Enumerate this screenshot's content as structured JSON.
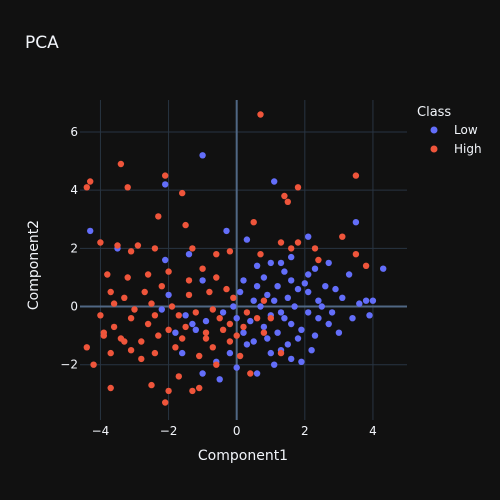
{
  "chart_data": {
    "type": "scatter",
    "title": "PCA",
    "xlabel": "Component1",
    "ylabel": "Component2",
    "xlim": [
      -4.6,
      5.0
    ],
    "ylim": [
      -3.9,
      7.1
    ],
    "xticks": [
      -4,
      -2,
      0,
      2,
      4
    ],
    "yticks": [
      -2,
      0,
      2,
      4,
      6
    ],
    "grid": true,
    "legend": {
      "title": "Class",
      "position": "top-right"
    },
    "series": [
      {
        "name": "Low",
        "color": "#636efa",
        "points": [
          [
            -1.0,
            5.2
          ],
          [
            -2.1,
            4.2
          ],
          [
            1.1,
            4.3
          ],
          [
            -3.5,
            2.0
          ],
          [
            -2.1,
            1.6
          ],
          [
            -4.3,
            2.6
          ],
          [
            -1.4,
            1.8
          ],
          [
            -0.3,
            2.6
          ],
          [
            0.3,
            2.3
          ],
          [
            1.0,
            1.5
          ],
          [
            1.3,
            1.5
          ],
          [
            1.6,
            1.7
          ],
          [
            2.1,
            2.4
          ],
          [
            3.5,
            2.9
          ],
          [
            4.3,
            1.3
          ],
          [
            3.3,
            1.1
          ],
          [
            2.7,
            1.5
          ],
          [
            2.1,
            1.1
          ],
          [
            1.4,
            1.2
          ],
          [
            0.6,
            1.4
          ],
          [
            -2.0,
            0.4
          ],
          [
            -1.0,
            0.9
          ],
          [
            0.1,
            0.5
          ],
          [
            0.6,
            0.7
          ],
          [
            0.9,
            0.4
          ],
          [
            1.2,
            0.7
          ],
          [
            1.5,
            0.3
          ],
          [
            1.8,
            0.6
          ],
          [
            2.1,
            0.5
          ],
          [
            2.4,
            0.2
          ],
          [
            2.6,
            0.7
          ],
          [
            2.9,
            0.6
          ],
          [
            3.1,
            0.3
          ],
          [
            3.6,
            0.1
          ],
          [
            3.8,
            0.2
          ],
          [
            4.0,
            0.2
          ],
          [
            3.9,
            -0.3
          ],
          [
            3.4,
            -0.4
          ],
          [
            3.0,
            -0.9
          ],
          [
            2.7,
            -0.6
          ],
          [
            2.4,
            -0.4
          ],
          [
            2.1,
            -0.2
          ],
          [
            1.9,
            -0.8
          ],
          [
            1.6,
            -0.6
          ],
          [
            1.3,
            -0.2
          ],
          [
            1.0,
            -0.3
          ],
          [
            0.7,
            0.0
          ],
          [
            0.4,
            -0.5
          ],
          [
            0.2,
            -0.9
          ],
          [
            0.5,
            -1.2
          ],
          [
            0.9,
            -1.1
          ],
          [
            1.2,
            -0.9
          ],
          [
            1.5,
            -1.3
          ],
          [
            1.8,
            -1.1
          ],
          [
            2.2,
            -1.5
          ],
          [
            1.6,
            -1.8
          ],
          [
            1.0,
            -1.6
          ],
          [
            0.3,
            -1.3
          ],
          [
            -0.2,
            -1.6
          ],
          [
            -0.6,
            -1.9
          ],
          [
            -0.5,
            -2.5
          ],
          [
            0.0,
            -2.1
          ],
          [
            -1.0,
            -2.3
          ],
          [
            -1.6,
            -1.6
          ],
          [
            -1.8,
            -0.9
          ],
          [
            -1.3,
            -0.6
          ],
          [
            -1.5,
            -0.3
          ],
          [
            -0.9,
            -0.5
          ],
          [
            -0.4,
            -0.2
          ],
          [
            0.0,
            -0.4
          ],
          [
            1.1,
            0.2
          ],
          [
            1.4,
            -0.4
          ],
          [
            0.8,
            -0.7
          ],
          [
            1.7,
            0.0
          ],
          [
            2.3,
            -1.0
          ],
          [
            2.5,
            0.0
          ],
          [
            2.8,
            -0.2
          ],
          [
            0.5,
            0.2
          ],
          [
            0.2,
            0.9
          ],
          [
            -0.1,
            0.0
          ],
          [
            1.6,
            0.9
          ],
          [
            2.0,
            0.8
          ],
          [
            2.3,
            1.3
          ],
          [
            0.8,
            1.0
          ],
          [
            1.3,
            -1.5
          ],
          [
            1.9,
            -1.9
          ],
          [
            1.1,
            -2.0
          ],
          [
            0.6,
            -2.3
          ],
          [
            -1.2,
            -0.8
          ],
          [
            -2.2,
            -0.1
          ]
        ]
      },
      {
        "name": "High",
        "color": "#ef553b",
        "points": [
          [
            0.7,
            6.6
          ],
          [
            -3.4,
            4.9
          ],
          [
            -4.3,
            4.3
          ],
          [
            -4.4,
            4.1
          ],
          [
            -2.1,
            4.5
          ],
          [
            -3.2,
            4.1
          ],
          [
            -1.6,
            3.9
          ],
          [
            1.8,
            4.1
          ],
          [
            3.5,
            4.5
          ],
          [
            1.4,
            3.8
          ],
          [
            1.5,
            3.6
          ],
          [
            -2.3,
            3.1
          ],
          [
            -1.5,
            2.8
          ],
          [
            0.5,
            2.9
          ],
          [
            -0.2,
            1.9
          ],
          [
            -3.5,
            2.1
          ],
          [
            -2.9,
            2.1
          ],
          [
            -4.0,
            2.2
          ],
          [
            -3.1,
            1.9
          ],
          [
            -2.4,
            2.0
          ],
          [
            -1.3,
            2.0
          ],
          [
            -0.6,
            1.8
          ],
          [
            1.3,
            2.2
          ],
          [
            1.6,
            2.0
          ],
          [
            1.8,
            2.2
          ],
          [
            2.3,
            2.0
          ],
          [
            2.4,
            1.6
          ],
          [
            3.1,
            2.4
          ],
          [
            3.5,
            1.8
          ],
          [
            3.8,
            1.4
          ],
          [
            -3.8,
            1.1
          ],
          [
            -3.2,
            1.0
          ],
          [
            -2.6,
            1.1
          ],
          [
            -2.0,
            1.2
          ],
          [
            -1.0,
            1.3
          ],
          [
            -0.6,
            1.0
          ],
          [
            0.7,
            1.8
          ],
          [
            -3.7,
            0.5
          ],
          [
            -3.3,
            0.3
          ],
          [
            -2.7,
            0.5
          ],
          [
            -2.2,
            0.7
          ],
          [
            -1.4,
            0.9
          ],
          [
            -0.8,
            0.5
          ],
          [
            -0.3,
            0.6
          ],
          [
            -4.0,
            -0.3
          ],
          [
            -3.6,
            -0.7
          ],
          [
            -3.1,
            -0.4
          ],
          [
            -2.6,
            -0.6
          ],
          [
            -2.0,
            -0.8
          ],
          [
            -1.5,
            -0.7
          ],
          [
            -0.9,
            -0.9
          ],
          [
            -0.5,
            -0.4
          ],
          [
            0.2,
            -0.7
          ],
          [
            0.6,
            -0.4
          ],
          [
            -4.4,
            -1.4
          ],
          [
            -3.7,
            -1.6
          ],
          [
            -3.1,
            -1.5
          ],
          [
            -2.4,
            -1.6
          ],
          [
            -1.8,
            -1.4
          ],
          [
            -1.1,
            -1.7
          ],
          [
            -0.7,
            -1.4
          ],
          [
            -0.2,
            -1.2
          ],
          [
            0.1,
            -1.7
          ],
          [
            0.4,
            -2.3
          ],
          [
            -4.2,
            -2.0
          ],
          [
            -3.7,
            -2.8
          ],
          [
            -2.5,
            -2.7
          ],
          [
            -1.7,
            -2.4
          ],
          [
            -1.3,
            -2.9
          ],
          [
            -1.1,
            -2.8
          ],
          [
            -2.1,
            -3.3
          ],
          [
            -2.0,
            -2.9
          ],
          [
            -0.6,
            -2.0
          ],
          [
            1.0,
            -0.4
          ],
          [
            0.8,
            0.2
          ],
          [
            -3.9,
            -0.9
          ],
          [
            -3.4,
            -1.1
          ],
          [
            -2.8,
            -1.2
          ],
          [
            -2.3,
            -1.0
          ],
          [
            -1.7,
            -0.3
          ],
          [
            -1.2,
            -0.2
          ],
          [
            -0.7,
            -0.1
          ],
          [
            -0.1,
            0.3
          ],
          [
            -3.0,
            -0.1
          ],
          [
            -3.6,
            0.1
          ],
          [
            -2.5,
            0.1
          ],
          [
            -1.9,
            0.0
          ],
          [
            -0.2,
            -0.6
          ],
          [
            0.3,
            -0.2
          ],
          [
            -1.4,
            0.4
          ],
          [
            -2.4,
            -0.3
          ],
          [
            -3.3,
            -1.2
          ],
          [
            -0.9,
            -1.1
          ],
          [
            -0.4,
            -0.8
          ],
          [
            0.0,
            -1.0
          ],
          [
            -1.6,
            -1.1
          ],
          [
            -2.8,
            -1.8
          ],
          [
            -3.9,
            -1.0
          ],
          [
            0.8,
            -0.9
          ],
          [
            1.3,
            -1.6
          ]
        ]
      }
    ]
  }
}
